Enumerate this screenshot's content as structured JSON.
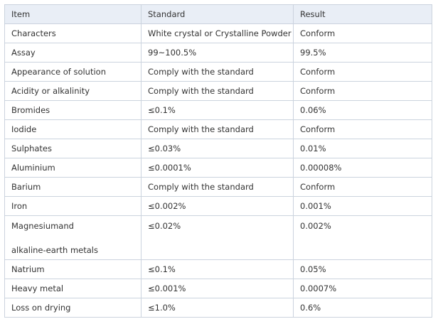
{
  "table": {
    "header": [
      "Item",
      "Standard",
      "Result"
    ],
    "rows": [
      [
        "Characters",
        "White crystal or Crystalline Powder",
        "Conform"
      ],
      [
        "Assay",
        "99~100.5%",
        "99.5%"
      ],
      [
        "Appearance of solution",
        "Comply with the standard",
        "Conform"
      ],
      [
        "Acidity or alkalinity",
        "Comply with the standard",
        "Conform"
      ],
      [
        "Bromides",
        "≤0.1%",
        "0.06%"
      ],
      [
        "Iodide",
        "Comply with the standard",
        "Conform"
      ],
      [
        "Sulphates",
        "≤0.03%",
        "0.01%"
      ],
      [
        "Aluminium",
        "≤0.0001%",
        "0.00008%"
      ],
      [
        "Barium",
        "Comply with the standard",
        "Conform"
      ],
      [
        "Iron",
        "≤0.002%",
        "0.001%"
      ],
      [
        [
          "Magnesiumand",
          "alkaline-earth metals"
        ],
        "≤0.02%",
        "0.002%"
      ],
      [
        "Natrium",
        "≤0.1%",
        "0.05%"
      ],
      [
        "Heavy metal",
        "≤0.001%",
        "0.0007%"
      ],
      [
        "Loss on drying",
        "≤1.0%",
        "0.6%"
      ]
    ]
  }
}
